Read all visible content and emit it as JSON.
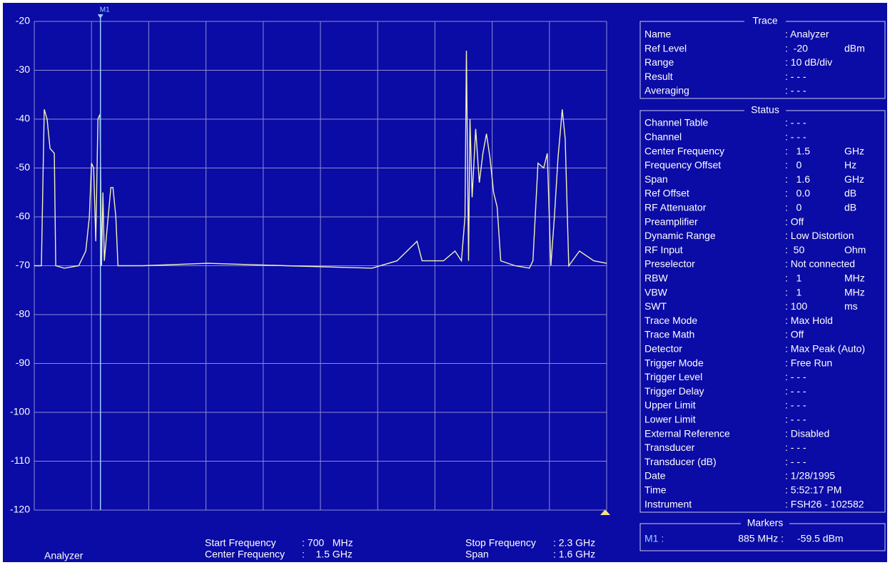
{
  "chart_data": {
    "type": "line",
    "x": [
      700,
      720,
      728,
      736,
      744,
      756,
      760,
      784,
      824,
      844,
      854,
      860,
      866,
      872,
      878,
      884,
      888,
      892,
      896,
      904,
      914,
      920,
      928,
      934,
      1004,
      1184,
      1404,
      1644,
      1714,
      1770,
      1784,
      1844,
      1876,
      1894,
      1904,
      1908,
      1914,
      1918,
      1924,
      1934,
      1944,
      1954,
      1964,
      1974,
      1984,
      1994,
      2004,
      2044,
      2084,
      2094,
      2108,
      2124,
      2134,
      2144,
      2154,
      2164,
      2176,
      2184,
      2194,
      2224,
      2264,
      2300
    ],
    "values": [
      -70,
      -70,
      -38,
      -40,
      -46,
      -47,
      -70,
      -70.5,
      -70,
      -67,
      -60,
      -49,
      -50,
      -65,
      -40,
      -39,
      -70,
      -55,
      -69,
      -62,
      -54,
      -54,
      -60,
      -70,
      -70,
      -69.5,
      -70,
      -70.5,
      -69,
      -65,
      -69,
      -69,
      -67,
      -69,
      -60,
      -26,
      -69,
      -40,
      -56,
      -42,
      -53,
      -47,
      -43,
      -48,
      -55,
      -58,
      -69,
      -70,
      -70.5,
      -69,
      -49,
      -50,
      -47,
      -70,
      -60,
      -48,
      -38,
      -44,
      -70,
      -67,
      -69,
      -69.5
    ],
    "color": "#f2f2b8",
    "xlim": [
      700,
      2300
    ],
    "ylim": [
      -120,
      -20
    ],
    "yticks": [
      -20,
      -30,
      -40,
      -50,
      -60,
      -70,
      -80,
      -90,
      -100,
      -110,
      -120
    ],
    "grid": true,
    "markers": [
      {
        "label": "M1",
        "x": 885
      }
    ]
  },
  "trace_panel": {
    "title": "Trace",
    "rows": [
      {
        "label": "Name",
        "value": ": Analyzer"
      },
      {
        "label": "Ref Level",
        "value": ":  -20",
        "unit": "dBm"
      },
      {
        "label": "Range",
        "value": ": 10 dB/div"
      },
      {
        "label": "Result",
        "value": ": - - -"
      },
      {
        "label": "Averaging",
        "value": ": - - -"
      }
    ]
  },
  "status_panel": {
    "title": "Status",
    "rows": [
      {
        "label": "Channel Table",
        "value": ": - - -"
      },
      {
        "label": "Channel",
        "value": ": - - -"
      },
      {
        "label": "Center Frequency",
        "value": ":   1.5",
        "unit": "GHz"
      },
      {
        "label": "Frequency Offset",
        "value": ":   0",
        "unit": "Hz"
      },
      {
        "label": "Span",
        "value": ":   1.6",
        "unit": "GHz"
      },
      {
        "label": "Ref Offset",
        "value": ":   0.0",
        "unit": "dB"
      },
      {
        "label": "RF Attenuator",
        "value": ":   0",
        "unit": "dB"
      },
      {
        "label": "Preamplifier",
        "value": ": Off"
      },
      {
        "label": "Dynamic Range",
        "value": ": Low Distortion"
      },
      {
        "label": "RF Input",
        "value": ":  50",
        "unit": "Ohm"
      },
      {
        "label": "Preselector",
        "value": ": Not connected"
      },
      {
        "label": "RBW",
        "value": ":   1",
        "unit": "MHz"
      },
      {
        "label": "VBW",
        "value": ":   1",
        "unit": "MHz"
      },
      {
        "label": "SWT",
        "value": ": 100",
        "unit": "ms"
      },
      {
        "label": "Trace Mode",
        "value": ": Max Hold"
      },
      {
        "label": "Trace Math",
        "value": ": Off"
      },
      {
        "label": "Detector",
        "value": ": Max Peak (Auto)"
      },
      {
        "label": "Trigger Mode",
        "value": ": Free Run"
      },
      {
        "label": "Trigger Level",
        "value": ": - - -"
      },
      {
        "label": "Trigger Delay",
        "value": ": - - -"
      },
      {
        "label": "Upper Limit",
        "value": ": - - -"
      },
      {
        "label": "Lower Limit",
        "value": ": - - -"
      },
      {
        "label": "External Reference",
        "value": ": Disabled"
      },
      {
        "label": "Transducer",
        "value": ": - - -"
      },
      {
        "label": "Transducer (dB)",
        "value": ": - - -"
      },
      {
        "label": "Date",
        "value": ": 1/28/1995"
      },
      {
        "label": "Time",
        "value": ": 5:52:17 PM"
      },
      {
        "label": "Instrument",
        "value": ": FSH26 - 102582"
      }
    ]
  },
  "markers_panel": {
    "title": "Markers",
    "name": "M1 :",
    "position": "885 MHz :",
    "level": "-59.5 dBm"
  },
  "footer": {
    "mode": "Analyzer",
    "start_label": "Start Frequency",
    "start_value": ": 700   MHz",
    "center_label": "Center Frequency",
    "center_value": ":    1.5 GHz",
    "stop_label": "Stop Frequency",
    "stop_value": ": 2.3 GHz",
    "span_label": "Span",
    "span_value": ": 1.6 GHz"
  }
}
